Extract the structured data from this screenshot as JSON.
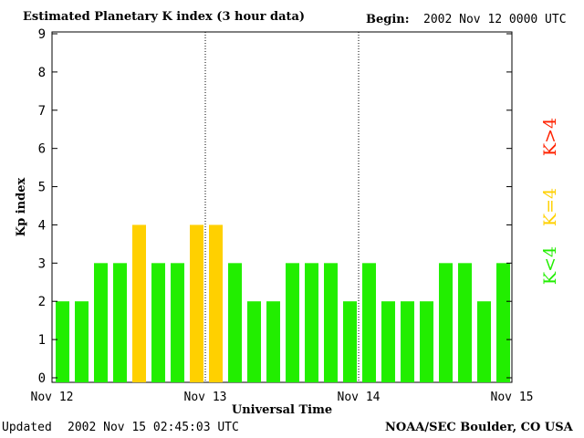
{
  "header": {
    "title": "Estimated Planetary K index (3 hour data)",
    "begin_label": "Begin:",
    "begin_value": "2002 Nov 12 0000 UTC"
  },
  "footer": {
    "updated_label": "Updated",
    "updated_value": "2002 Nov 15 02:45:03 UTC",
    "source": "NOAA/SEC Boulder, CO USA"
  },
  "chart_data": {
    "type": "bar",
    "title": "Estimated Planetary K index (3 hour data)",
    "xlabel": "Universal Time",
    "ylabel": "Kp index",
    "ylim": [
      0,
      9
    ],
    "yticks": [
      "0",
      "1",
      "2",
      "3",
      "4",
      "5",
      "6",
      "7",
      "8",
      "9"
    ],
    "xticks": [
      "Nov 12",
      "Nov 13",
      "Nov 14",
      "Nov 15"
    ],
    "grid": false,
    "day_dividers": true,
    "values": [
      2,
      2,
      3,
      3,
      4,
      3,
      3,
      4,
      4,
      3,
      2,
      2,
      3,
      3,
      3,
      2,
      3,
      2,
      2,
      2,
      3,
      3,
      2,
      3
    ],
    "colors": {
      "quiet": "#22ee00",
      "active": "#ffd000",
      "storm": "#ff2200"
    },
    "legend": [
      {
        "label": "K<4",
        "color": "#22ee00"
      },
      {
        "label": "K=4",
        "color": "#ffd000"
      },
      {
        "label": "K>4",
        "color": "#ff2200"
      }
    ],
    "legend_placement": "right"
  }
}
